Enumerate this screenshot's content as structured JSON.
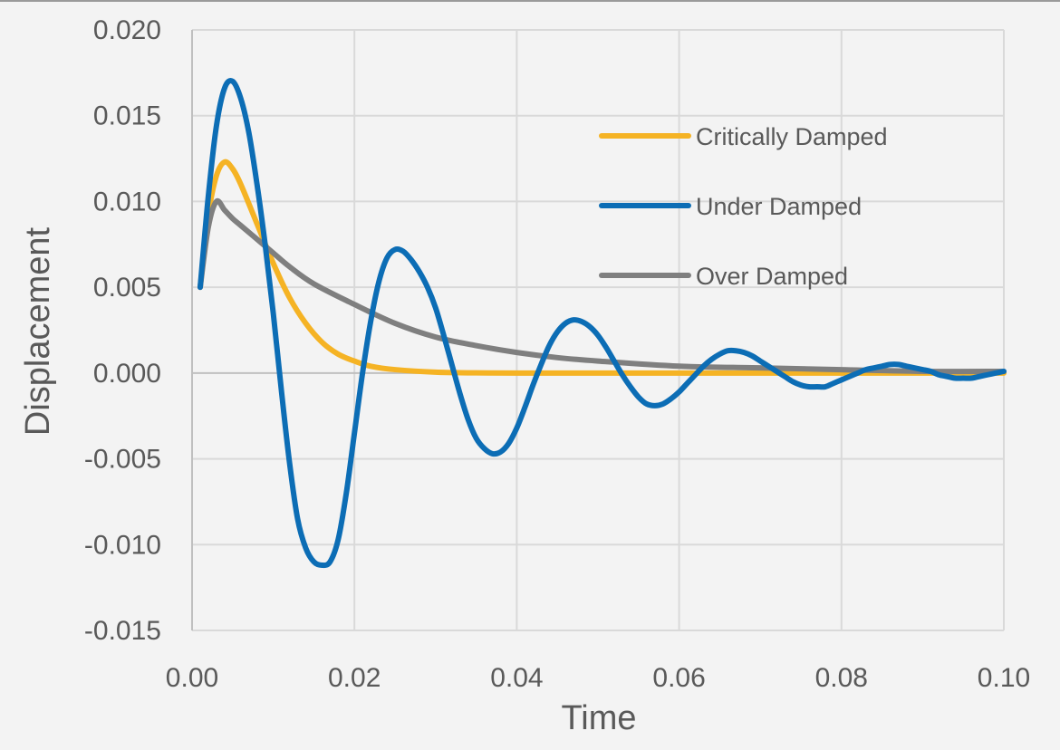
{
  "chart_data": {
    "type": "line",
    "title": "",
    "xlabel": "Time",
    "ylabel": "Displacement",
    "xlim": [
      0.0,
      0.1
    ],
    "ylim": [
      -0.015,
      0.02
    ],
    "x_ticks": [
      "0.00",
      "0.02",
      "0.04",
      "0.06",
      "0.08",
      "0.10"
    ],
    "y_ticks": [
      "0.020",
      "0.015",
      "0.010",
      "0.005",
      "0.000",
      "-0.005",
      "-0.010",
      "-0.015"
    ],
    "grid": true,
    "legend_position": "top-right",
    "series": [
      {
        "name": "Critically Damped",
        "color": "#f5b324",
        "x": [
          0.001,
          0.002,
          0.003,
          0.004,
          0.005,
          0.006,
          0.008,
          0.01,
          0.012,
          0.014,
          0.016,
          0.018,
          0.02,
          0.022,
          0.025,
          0.03,
          0.035,
          0.04,
          0.05,
          0.06,
          0.07,
          0.08,
          0.09,
          0.1
        ],
        "y": [
          0.005,
          0.0092,
          0.0115,
          0.0123,
          0.0119,
          0.011,
          0.0087,
          0.0064,
          0.0044,
          0.0029,
          0.0018,
          0.0011,
          0.0007,
          0.0004,
          0.0002,
          5e-05,
          1e-05,
          0.0,
          0.0,
          0.0,
          0.0,
          0.0,
          0.0,
          0.0
        ]
      },
      {
        "name": "Under Damped",
        "color": "#0c6db5",
        "x": [
          0.001,
          0.002,
          0.003,
          0.004,
          0.005,
          0.006,
          0.007,
          0.008,
          0.009,
          0.01,
          0.011,
          0.012,
          0.013,
          0.014,
          0.015,
          0.016,
          0.017,
          0.018,
          0.019,
          0.02,
          0.021,
          0.022,
          0.023,
          0.024,
          0.025,
          0.026,
          0.027,
          0.028,
          0.029,
          0.03,
          0.031,
          0.032,
          0.033,
          0.034,
          0.035,
          0.036,
          0.037,
          0.038,
          0.039,
          0.04,
          0.041,
          0.042,
          0.043,
          0.044,
          0.045,
          0.046,
          0.047,
          0.048,
          0.049,
          0.05,
          0.051,
          0.052,
          0.053,
          0.054,
          0.055,
          0.056,
          0.057,
          0.058,
          0.059,
          0.06,
          0.061,
          0.062,
          0.063,
          0.064,
          0.065,
          0.066,
          0.067,
          0.068,
          0.069,
          0.07,
          0.071,
          0.072,
          0.073,
          0.074,
          0.075,
          0.076,
          0.077,
          0.078,
          0.079,
          0.08,
          0.081,
          0.082,
          0.083,
          0.084,
          0.085,
          0.086,
          0.087,
          0.088,
          0.089,
          0.09,
          0.091,
          0.092,
          0.093,
          0.094,
          0.095,
          0.096,
          0.097,
          0.098,
          0.099,
          0.1
        ],
        "y": [
          0.005,
          0.0103,
          0.0144,
          0.0166,
          0.017,
          0.016,
          0.014,
          0.011,
          0.0075,
          0.0035,
          -0.001,
          -0.0052,
          -0.0085,
          -0.0102,
          -0.011,
          -0.0112,
          -0.011,
          -0.0097,
          -0.007,
          -0.0035,
          0.0,
          0.003,
          0.0053,
          0.0067,
          0.0072,
          0.0071,
          0.0066,
          0.0059,
          0.005,
          0.0038,
          0.0022,
          0.0005,
          -0.0012,
          -0.0027,
          -0.0038,
          -0.0044,
          -0.0047,
          -0.0046,
          -0.0041,
          -0.0032,
          -0.002,
          -0.0007,
          0.0005,
          0.0016,
          0.0024,
          0.0029,
          0.0031,
          0.003,
          0.0027,
          0.0022,
          0.0015,
          0.0007,
          -0.0001,
          -0.0008,
          -0.0014,
          -0.0018,
          -0.0019,
          -0.0018,
          -0.0015,
          -0.0011,
          -0.0006,
          -0.0001,
          0.0004,
          0.0008,
          0.0011,
          0.0013,
          0.0013,
          0.0012,
          0.001,
          0.0007,
          0.0004,
          0.0001,
          -0.0002,
          -0.0005,
          -0.0007,
          -0.0008,
          -0.0008,
          -0.0008,
          -0.0006,
          -0.0004,
          -0.0002,
          0.0,
          0.0002,
          0.0003,
          0.0004,
          0.0005,
          0.0005,
          0.0004,
          0.0003,
          0.0002,
          0.0001,
          -0.0001,
          -0.0002,
          -0.0003,
          -0.0003,
          -0.0003,
          -0.0002,
          -0.0001,
          0.0,
          0.0001
        ]
      },
      {
        "name": "Over Damped",
        "color": "#7f7f7f",
        "x": [
          0.001,
          0.002,
          0.003,
          0.004,
          0.005,
          0.006,
          0.008,
          0.01,
          0.012,
          0.015,
          0.02,
          0.025,
          0.03,
          0.035,
          0.04,
          0.045,
          0.05,
          0.06,
          0.07,
          0.08,
          0.09,
          0.1
        ],
        "y": [
          0.005,
          0.0085,
          0.01,
          0.0095,
          0.009,
          0.0086,
          0.0078,
          0.007,
          0.0062,
          0.0052,
          0.004,
          0.0029,
          0.0021,
          0.0016,
          0.0012,
          0.0009,
          0.0007,
          0.0004,
          0.0003,
          0.0002,
          0.0001,
          0.0001
        ]
      }
    ]
  }
}
